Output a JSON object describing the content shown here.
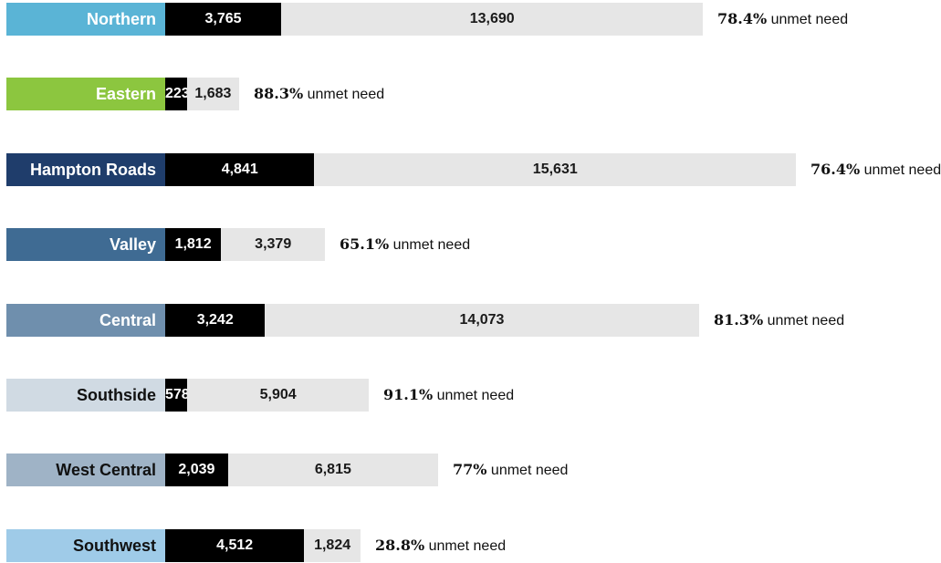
{
  "chart_data": {
    "type": "bar",
    "stacked": true,
    "orientation": "horizontal",
    "categories": [
      "Northern",
      "Eastern",
      "Hampton Roads",
      "Valley",
      "Central",
      "Southside",
      "West Central",
      "Southwest"
    ],
    "category_colors": [
      "#5ab4d6",
      "#8cc63f",
      "#1f3d6b",
      "#3f6b93",
      "#6f8fad",
      "#d0dae3",
      "#9fb3c6",
      "#9fcbe8"
    ],
    "category_text_colors": [
      "#ffffff",
      "#ffffff",
      "#ffffff",
      "#ffffff",
      "#ffffff",
      "#111111",
      "#111111",
      "#111111"
    ],
    "series": [
      {
        "values": [
          3765,
          223,
          4841,
          1812,
          3242,
          578,
          2039,
          4512
        ],
        "labels": [
          "3,765",
          "223",
          "4,841",
          "1,812",
          "3,242",
          "578",
          "2,039",
          "4,512"
        ],
        "color": "#000000"
      },
      {
        "values": [
          13690,
          1683,
          15631,
          3379,
          14073,
          5904,
          6815,
          1824
        ],
        "labels": [
          "13,690",
          "1,683",
          "15,631",
          "3,379",
          "14,073",
          "5,904",
          "6,815",
          "1,824"
        ],
        "color": "#e6e6e6"
      }
    ],
    "annotations": [
      "78.4%",
      "88.3%",
      "76.4%",
      "65.1%",
      "81.3%",
      "91.1%",
      "77%",
      "28.8%"
    ],
    "annotation_suffix": " unmet need"
  }
}
